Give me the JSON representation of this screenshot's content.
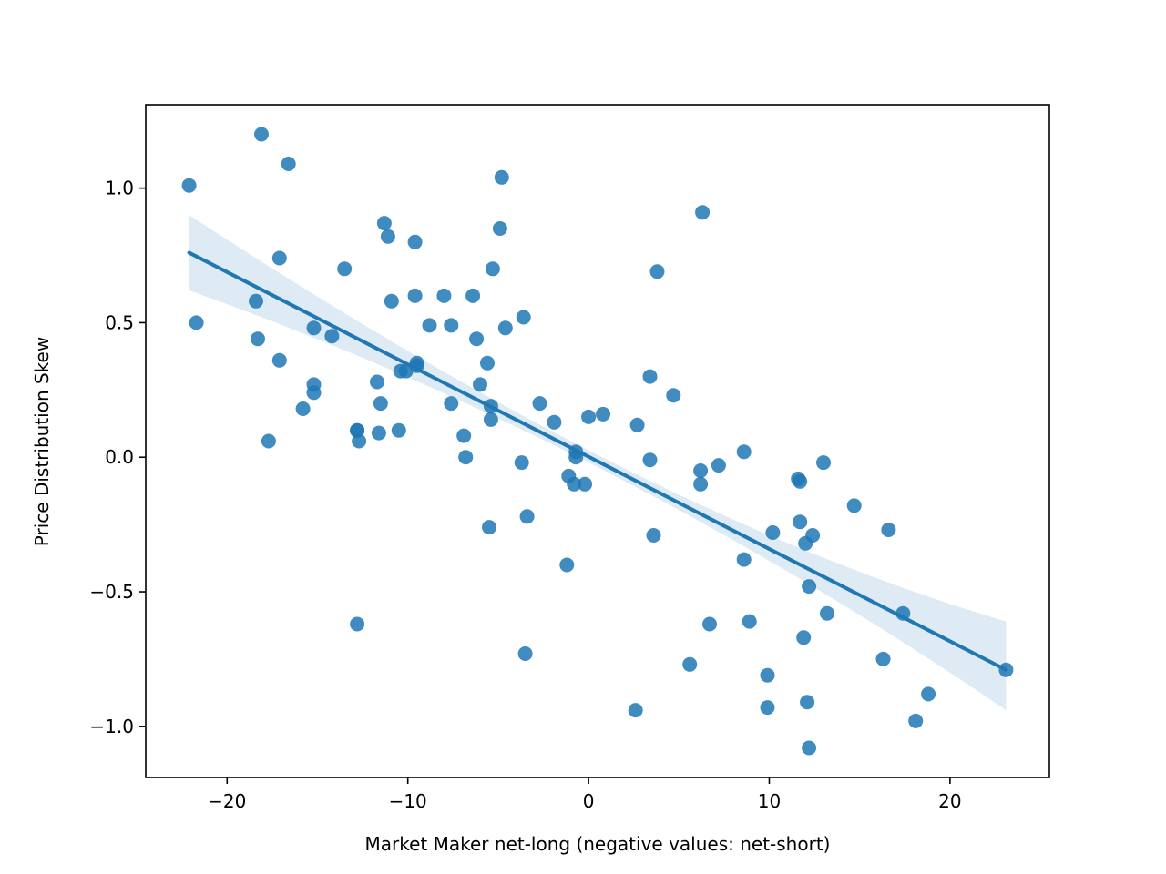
{
  "chart_data": {
    "type": "scatter",
    "title": "",
    "xlabel": "Market Maker net-long (negative values: net-short)",
    "ylabel": "Price Distribution Skew",
    "xlim": [
      -24.5,
      25.5
    ],
    "ylim": [
      -1.19,
      1.31
    ],
    "xticks": [
      -20,
      -10,
      0,
      10,
      20
    ],
    "xtick_labels": [
      "−20",
      "−10",
      "0",
      "10",
      "20"
    ],
    "yticks": [
      -1.0,
      -0.5,
      0.0,
      0.5,
      1.0
    ],
    "ytick_labels": [
      "−1.0",
      "−0.5",
      "0.0",
      "0.5",
      "1.0"
    ],
    "grid": false,
    "colors": {
      "points": "#1f77b4",
      "line": "#1f77b4",
      "band": "#1f77b4"
    },
    "points": [
      [
        -22.1,
        1.01
      ],
      [
        -18.1,
        1.2
      ],
      [
        -16.6,
        1.09
      ],
      [
        -21.7,
        0.5
      ],
      [
        -18.4,
        0.58
      ],
      [
        -18.3,
        0.44
      ],
      [
        -17.1,
        0.74
      ],
      [
        -17.1,
        0.36
      ],
      [
        -17.7,
        0.06
      ],
      [
        -15.2,
        0.48
      ],
      [
        -15.2,
        0.27
      ],
      [
        -15.2,
        0.24
      ],
      [
        -15.8,
        0.18
      ],
      [
        -14.2,
        0.45
      ],
      [
        -13.5,
        0.7
      ],
      [
        -12.8,
        0.1
      ],
      [
        -12.8,
        0.1
      ],
      [
        -12.7,
        0.06
      ],
      [
        -12.8,
        -0.62
      ],
      [
        -11.3,
        0.87
      ],
      [
        -11.1,
        0.82
      ],
      [
        -10.9,
        0.58
      ],
      [
        -11.7,
        0.28
      ],
      [
        -11.5,
        0.2
      ],
      [
        -11.6,
        0.09
      ],
      [
        -10.5,
        0.1
      ],
      [
        -10.4,
        0.32
      ],
      [
        -10.1,
        0.32
      ],
      [
        -9.6,
        0.8
      ],
      [
        -9.6,
        0.6
      ],
      [
        -9.5,
        0.35
      ],
      [
        -9.5,
        0.34
      ],
      [
        -8.8,
        0.49
      ],
      [
        -8.0,
        0.6
      ],
      [
        -7.6,
        0.49
      ],
      [
        -7.6,
        0.2
      ],
      [
        -6.4,
        0.6
      ],
      [
        -6.2,
        0.44
      ],
      [
        -6.9,
        0.08
      ],
      [
        -6.8,
        0.0
      ],
      [
        -6.0,
        0.27
      ],
      [
        -5.6,
        0.35
      ],
      [
        -5.4,
        0.19
      ],
      [
        -5.4,
        0.14
      ],
      [
        -5.5,
        -0.26
      ],
      [
        -4.8,
        1.04
      ],
      [
        -4.9,
        0.85
      ],
      [
        -5.3,
        0.7
      ],
      [
        -4.6,
        0.48
      ],
      [
        -3.6,
        0.52
      ],
      [
        -3.7,
        -0.02
      ],
      [
        -3.4,
        -0.22
      ],
      [
        -3.5,
        -0.73
      ],
      [
        -2.7,
        0.2
      ],
      [
        -1.9,
        0.13
      ],
      [
        -1.1,
        -0.07
      ],
      [
        -1.2,
        -0.4
      ],
      [
        -0.7,
        0.02
      ],
      [
        -0.7,
        0.0
      ],
      [
        -0.8,
        -0.1
      ],
      [
        -0.2,
        -0.1
      ],
      [
        0.0,
        0.15
      ],
      [
        0.8,
        0.16
      ],
      [
        2.7,
        0.12
      ],
      [
        2.6,
        -0.94
      ],
      [
        3.4,
        0.3
      ],
      [
        3.4,
        -0.01
      ],
      [
        3.6,
        -0.29
      ],
      [
        3.8,
        0.69
      ],
      [
        4.7,
        0.23
      ],
      [
        5.6,
        -0.77
      ],
      [
        6.3,
        0.91
      ],
      [
        6.2,
        -0.05
      ],
      [
        6.2,
        -0.1
      ],
      [
        6.7,
        -0.62
      ],
      [
        7.2,
        -0.03
      ],
      [
        8.6,
        0.02
      ],
      [
        8.6,
        -0.38
      ],
      [
        8.9,
        -0.61
      ],
      [
        10.2,
        -0.28
      ],
      [
        9.9,
        -0.81
      ],
      [
        9.9,
        -0.93
      ],
      [
        11.7,
        -0.09
      ],
      [
        11.6,
        -0.08
      ],
      [
        11.7,
        -0.24
      ],
      [
        12.0,
        -0.32
      ],
      [
        11.9,
        -0.67
      ],
      [
        12.4,
        -0.29
      ],
      [
        12.2,
        -0.48
      ],
      [
        12.1,
        -0.91
      ],
      [
        12.2,
        -1.08
      ],
      [
        13.0,
        -0.02
      ],
      [
        13.2,
        -0.58
      ],
      [
        14.7,
        -0.18
      ],
      [
        16.3,
        -0.75
      ],
      [
        16.6,
        -0.27
      ],
      [
        17.4,
        -0.58
      ],
      [
        18.1,
        -0.98
      ],
      [
        18.8,
        -0.88
      ],
      [
        23.1,
        -0.79
      ]
    ],
    "regression": {
      "x": [
        -22.1,
        23.1
      ],
      "y": [
        0.76,
        -0.79
      ],
      "ci_lower": [
        0.62,
        -0.94
      ],
      "ci_upper": [
        0.9,
        -0.61
      ]
    }
  }
}
